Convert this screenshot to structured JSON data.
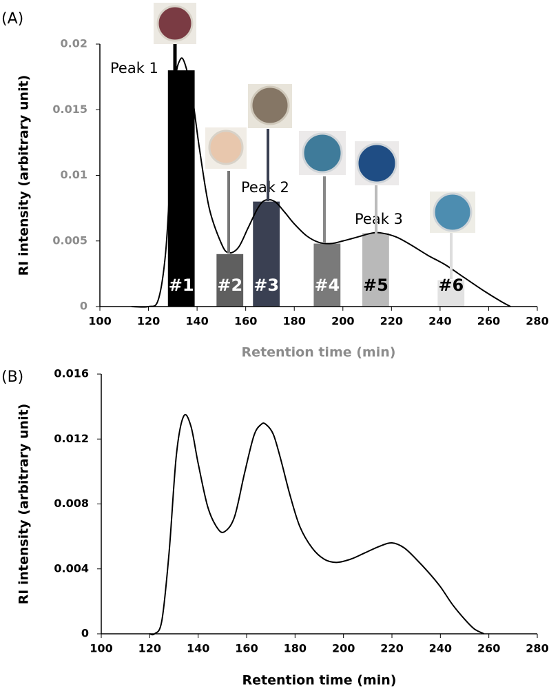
{
  "chart_data": [
    {
      "type": "line",
      "panel_label": "(A)",
      "x_label": "Retention time (min)",
      "y_label": "RI intensity (arbitrary unit)",
      "axis_label_color": "#8c8c8c",
      "color": "#000000",
      "xlim": [
        100,
        280
      ],
      "xticks": [
        100,
        120,
        140,
        160,
        180,
        200,
        220,
        240,
        260,
        280
      ],
      "ylim": [
        0,
        0.02
      ],
      "yticks": [
        0,
        0.005,
        0.01,
        0.015,
        0.02
      ],
      "x": [
        113,
        120,
        124,
        127,
        129,
        131,
        133,
        135,
        138,
        141,
        145,
        150,
        153,
        157,
        161,
        165,
        168,
        172,
        176,
        180,
        185,
        190,
        195,
        200,
        206,
        212,
        216,
        222,
        228,
        235,
        242,
        250,
        258,
        265,
        269
      ],
      "values": [
        0,
        0,
        0.0005,
        0.004,
        0.01,
        0.017,
        0.0188,
        0.0185,
        0.016,
        0.012,
        0.0075,
        0.0048,
        0.0041,
        0.0045,
        0.006,
        0.0075,
        0.0081,
        0.008,
        0.0072,
        0.0063,
        0.0054,
        0.0049,
        0.0048,
        0.005,
        0.0053,
        0.0056,
        0.0056,
        0.0053,
        0.0047,
        0.0039,
        0.0032,
        0.0022,
        0.0012,
        0.0004,
        0
      ],
      "annotations": [
        "Peak 1",
        "Peak 2",
        "Peak 3"
      ],
      "fractions": [
        {
          "label": "#1",
          "start": 128,
          "end": 139,
          "value": 0.018,
          "color": "#000000",
          "label_color": "#ffffff"
        },
        {
          "label": "#2",
          "start": 148,
          "end": 159,
          "value": 0.004,
          "color": "#5f5f5f",
          "label_color": "#ffffff"
        },
        {
          "label": "#3",
          "start": 163,
          "end": 174,
          "value": 0.008,
          "color": "#3a4052",
          "label_color": "#ffffff"
        },
        {
          "label": "#4",
          "start": 188,
          "end": 199,
          "value": 0.0048,
          "color": "#7a7a7a",
          "label_color": "#ffffff"
        },
        {
          "label": "#5",
          "start": 208,
          "end": 219,
          "value": 0.0056,
          "color": "#b9b9b9",
          "label_color": "#000000"
        },
        {
          "label": "#6",
          "start": 239,
          "end": 250,
          "value": 0.002,
          "color": "#e2e2e2",
          "label_color": "#000000"
        }
      ]
    },
    {
      "type": "line",
      "panel_label": "(B)",
      "x_label": "Retention time (min)",
      "y_label": "RI intensity (arbitrary unit)",
      "axis_label_color": "#000000",
      "color": "#000000",
      "xlim": [
        100,
        280
      ],
      "xticks": [
        100,
        120,
        140,
        160,
        180,
        200,
        220,
        240,
        260,
        280
      ],
      "ylim": [
        0,
        0.016
      ],
      "yticks": [
        0,
        0.004,
        0.008,
        0.012,
        0.016
      ],
      "x": [
        120,
        122,
        125,
        128,
        131,
        134,
        137,
        140,
        144,
        148,
        151,
        155,
        159,
        163,
        166,
        168,
        171,
        174,
        178,
        182,
        187,
        192,
        197,
        203,
        209,
        215,
        220,
        225,
        230,
        235,
        240,
        245,
        250,
        254,
        258
      ],
      "values": [
        0,
        0,
        0.0008,
        0.005,
        0.011,
        0.0134,
        0.0128,
        0.0105,
        0.0078,
        0.0065,
        0.0063,
        0.0072,
        0.0098,
        0.0122,
        0.0129,
        0.0129,
        0.0123,
        0.0108,
        0.0085,
        0.0066,
        0.0053,
        0.0046,
        0.0044,
        0.0046,
        0.005,
        0.0054,
        0.0056,
        0.0053,
        0.0046,
        0.0038,
        0.0029,
        0.0018,
        0.0009,
        0.0003,
        0
      ]
    }
  ]
}
